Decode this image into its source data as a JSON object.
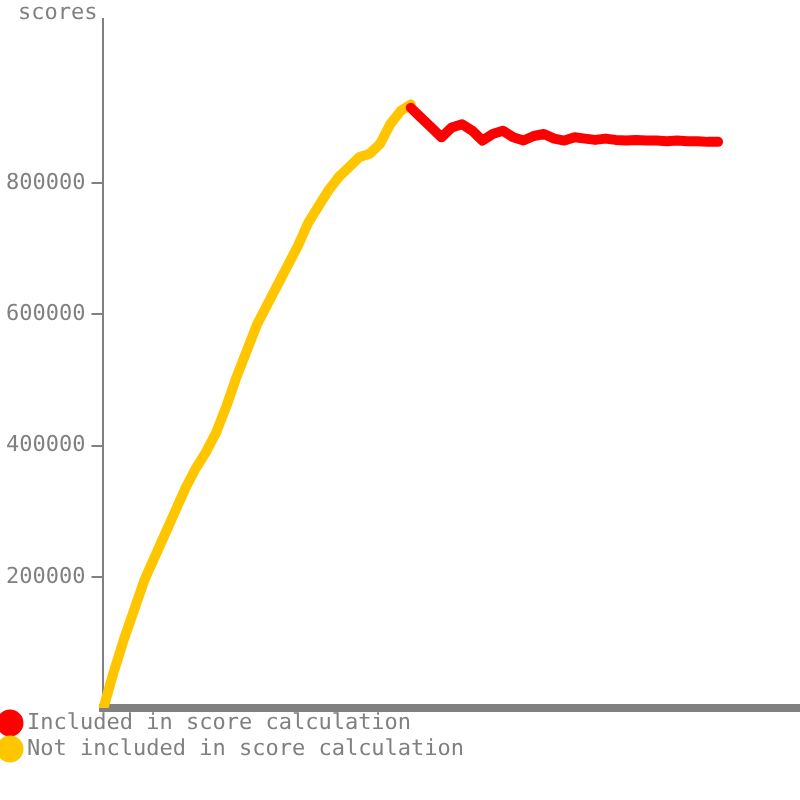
{
  "chart_data": {
    "type": "line",
    "ylabel": "scores",
    "categories": [
      null,
      null,
      null,
      null,
      null,
      null,
      null,
      null,
      null,
      null,
      null,
      null,
      null,
      null,
      null,
      null,
      null,
      null,
      null,
      null,
      null,
      null,
      null,
      null,
      null,
      null,
      null,
      null,
      null,
      null,
      null,
      null,
      null,
      null,
      null,
      null,
      null,
      null,
      null,
      null,
      null,
      null,
      null,
      null,
      null,
      null,
      null,
      null,
      null,
      null,
      null,
      null,
      null,
      null,
      null,
      null,
      null,
      null,
      null,
      null,
      null,
      null,
      null,
      null,
      null,
      null,
      null,
      null,
      null
    ],
    "series": [
      {
        "name": "Included in score calculation",
        "color": "#ff0000",
        "values": [
          null,
          null,
          null,
          null,
          null,
          null,
          null,
          null,
          null,
          null,
          null,
          null,
          null,
          null,
          null,
          null,
          null,
          null,
          null,
          null,
          null,
          null,
          null,
          null,
          null,
          null,
          null,
          null,
          null,
          null,
          915000,
          900000,
          885000,
          870000,
          885000,
          890000,
          880000,
          865000,
          875000,
          880000,
          870000,
          865000,
          872000,
          875000,
          868000,
          865000,
          870000,
          868000,
          866000,
          868000,
          866000,
          865000,
          866000,
          865000,
          865000,
          864000,
          865000,
          864000,
          864000,
          863000,
          863000,
          null,
          null,
          null,
          null,
          null,
          null,
          null,
          null
        ]
      },
      {
        "name": "Not included in score calculation",
        "color": "#ffc600",
        "values": [
          0,
          55000,
          105000,
          150000,
          195000,
          230000,
          265000,
          300000,
          335000,
          365000,
          390000,
          420000,
          460000,
          505000,
          545000,
          585000,
          615000,
          645000,
          675000,
          705000,
          740000,
          765000,
          790000,
          810000,
          825000,
          840000,
          845000,
          860000,
          890000,
          910000,
          920000,
          null,
          null,
          null,
          null,
          null,
          null,
          null,
          null,
          null,
          null,
          null,
          null,
          null,
          null,
          null,
          null,
          null,
          null,
          null,
          null,
          null,
          null,
          null,
          null,
          null,
          null,
          null,
          null,
          null,
          null,
          null,
          null,
          null,
          null,
          null,
          null,
          null,
          null
        ]
      }
    ],
    "ylim": [
      0,
      1050000
    ],
    "yticks": [
      200000,
      400000,
      600000,
      800000
    ],
    "tick_labels": "y",
    "legend": "bottom",
    "grid": false,
    "marker": "none",
    "line_style": "solid"
  }
}
